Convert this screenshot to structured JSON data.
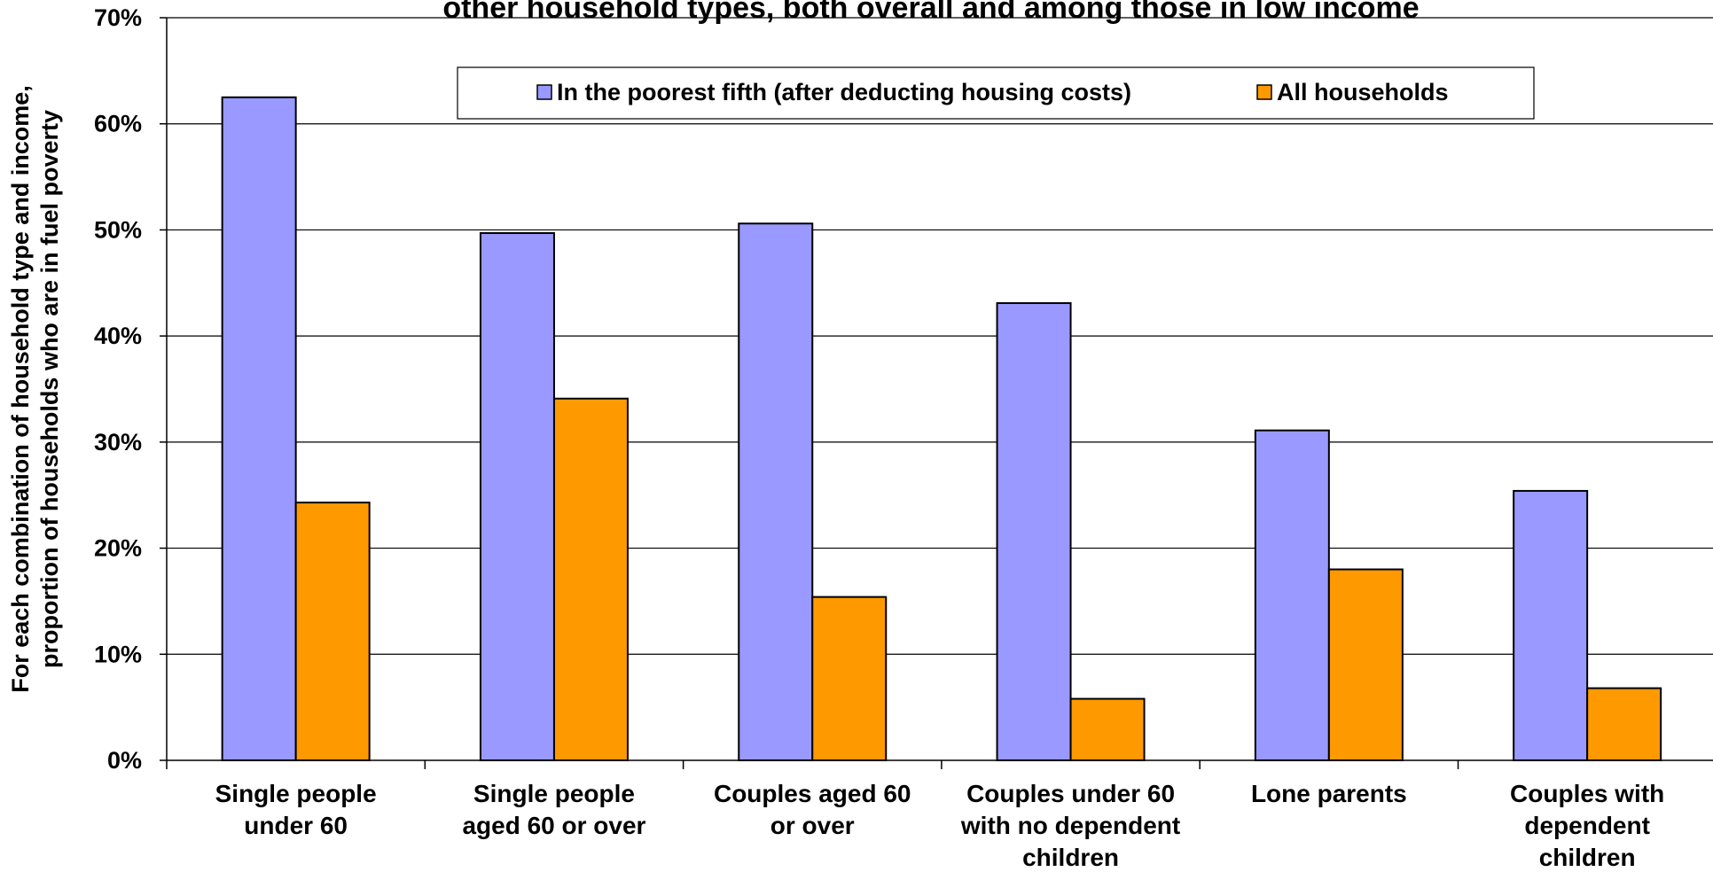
{
  "chart_data": {
    "type": "bar",
    "title": "other household types, both overall and among those in low income",
    "ylabel": [
      "For each combination of household type and income,",
      "proportion of households who are in fuel poverty"
    ],
    "xlabel": "",
    "categories": [
      [
        "Single people",
        "under 60"
      ],
      [
        "Single people",
        "aged 60 or over"
      ],
      [
        "Couples aged 60",
        "or over"
      ],
      [
        "Couples under 60",
        "with no dependent",
        "children"
      ],
      [
        "Lone parents"
      ],
      [
        "Couples with",
        "dependent",
        "children"
      ]
    ],
    "series": [
      {
        "name": "In the poorest fifth (after deducting housing costs)",
        "color": "#9999ff",
        "values": [
          62.5,
          49.7,
          50.6,
          43.1,
          31.1,
          25.4
        ]
      },
      {
        "name": "All households",
        "color": "#ff9900",
        "values": [
          24.3,
          34.1,
          15.4,
          5.8,
          18.0,
          6.8
        ]
      }
    ],
    "ylim": [
      0,
      70
    ],
    "yticks": [
      0,
      10,
      20,
      30,
      40,
      50,
      60,
      70
    ],
    "ytick_labels": [
      "0%",
      "10%",
      "20%",
      "30%",
      "40%",
      "50%",
      "60%",
      "70%"
    ],
    "grid": true,
    "legend_position": "top"
  }
}
